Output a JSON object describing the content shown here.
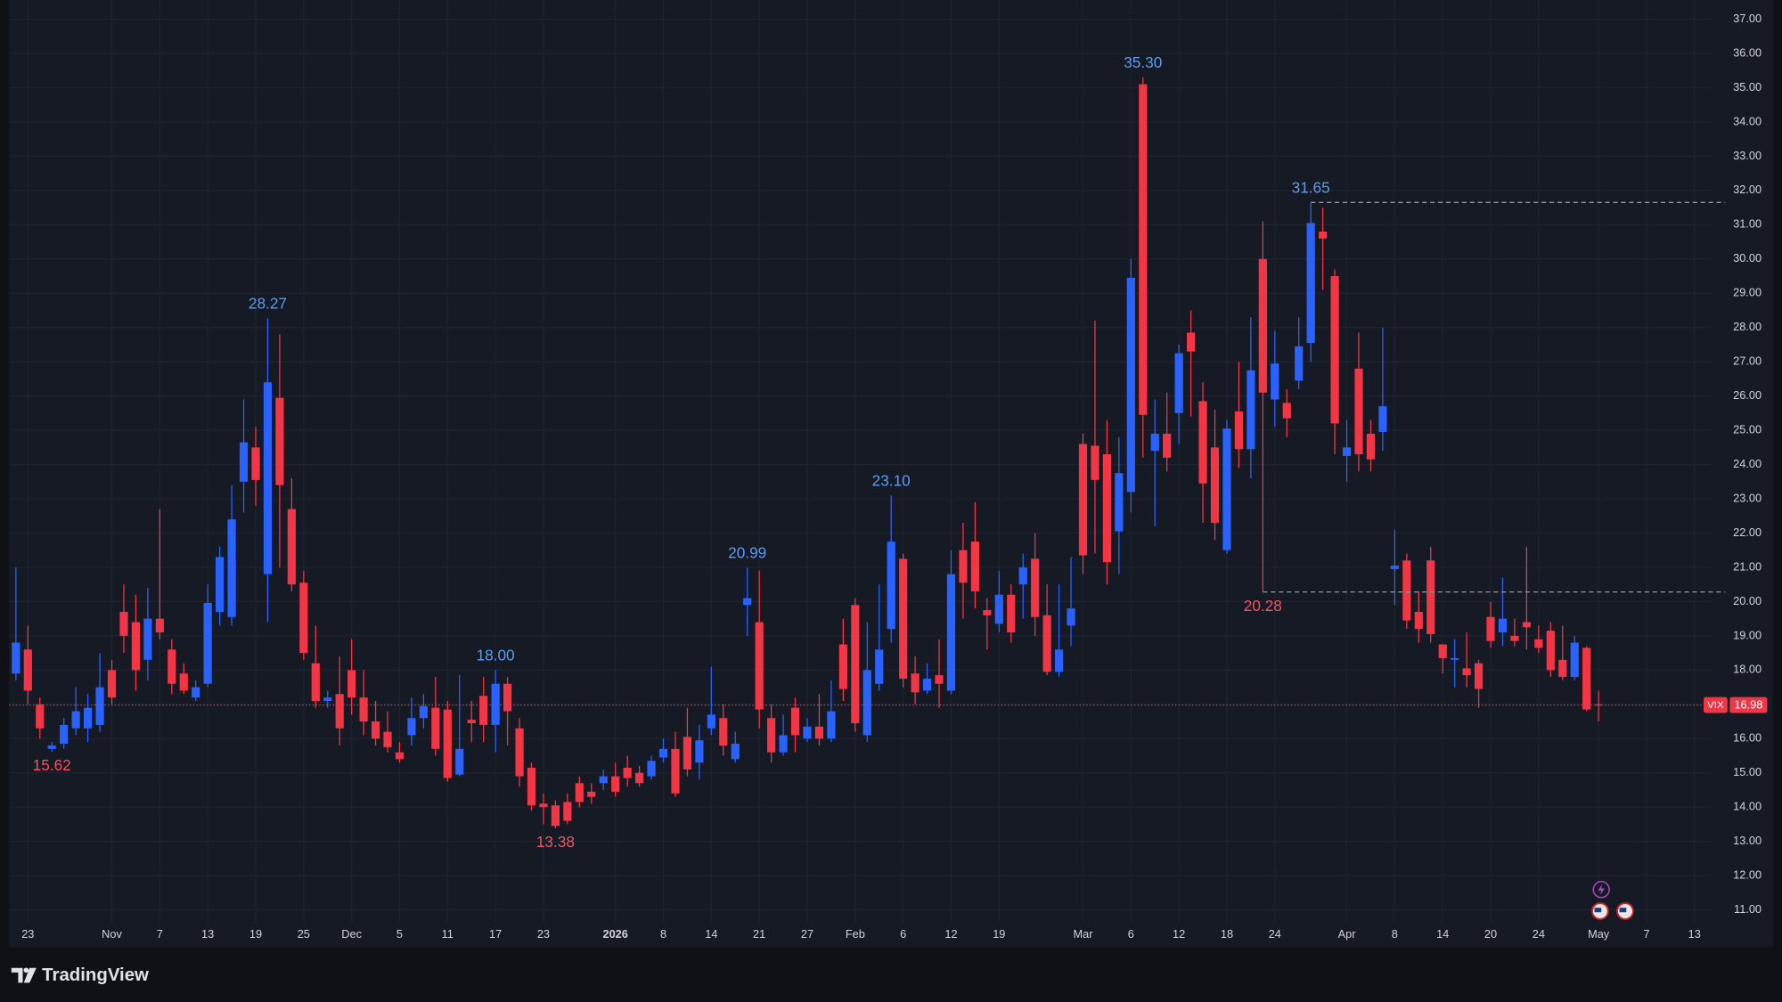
{
  "brand": "TradingView",
  "chart_data": {
    "type": "candlestick",
    "categories": [
      null,
      "23",
      null,
      null,
      null,
      null,
      null,
      null,
      "Nov",
      null,
      null,
      null,
      "7",
      null,
      null,
      null,
      "13",
      null,
      null,
      null,
      "19",
      null,
      null,
      null,
      "25",
      null,
      null,
      null,
      "Dec",
      null,
      null,
      null,
      "5",
      null,
      null,
      null,
      "11",
      null,
      null,
      null,
      "17",
      null,
      null,
      null,
      "23",
      null,
      null,
      null,
      null,
      null,
      "2026",
      null,
      null,
      null,
      "8",
      null,
      null,
      null,
      "14",
      null,
      null,
      null,
      "21",
      null,
      null,
      null,
      "27",
      null,
      null,
      null,
      "Feb",
      null,
      null,
      null,
      "6",
      null,
      null,
      null,
      "12",
      null,
      null,
      null,
      "19",
      null,
      null,
      null,
      null,
      null,
      null,
      "Mar",
      null,
      null,
      null,
      "6",
      null,
      null,
      null,
      "12",
      null,
      null,
      null,
      "18",
      null,
      null,
      null,
      "24",
      null,
      null,
      null,
      null,
      null,
      "Apr",
      null,
      null,
      null,
      "8",
      null,
      null,
      null,
      "14",
      null,
      null,
      null,
      "20",
      null,
      null,
      null,
      "24",
      null,
      null,
      null,
      null,
      "May",
      null,
      null,
      null,
      "7",
      null,
      null,
      null,
      "13"
    ],
    "open": [
      17.9,
      18.6,
      17.0,
      15.7,
      15.85,
      16.3,
      16.3,
      16.4,
      18.0,
      19.7,
      19.4,
      18.3,
      19.5,
      18.6,
      17.9,
      17.2,
      17.6,
      19.7,
      19.55,
      23.5,
      24.5,
      20.8,
      25.95,
      22.7,
      20.55,
      18.2,
      17.1,
      17.3,
      18.0,
      17.2,
      16.5,
      16.2,
      15.6,
      16.1,
      16.6,
      16.9,
      16.85,
      14.95,
      16.55,
      17.25,
      16.4,
      17.6,
      16.3,
      15.15,
      14.1,
      14.05,
      14.15,
      14.7,
      14.45,
      14.7,
      14.9,
      15.15,
      15.0,
      14.9,
      15.45,
      15.7,
      16.05,
      15.3,
      16.3,
      16.6,
      15.4,
      19.9,
      19.4,
      16.6,
      15.6,
      16.9,
      16.0,
      16.35,
      16.0,
      18.75,
      19.9,
      16.1,
      17.6,
      19.2,
      21.25,
      17.9,
      17.4,
      17.85,
      17.4,
      21.5,
      21.75,
      19.75,
      19.35,
      20.2,
      20.5,
      21.25,
      19.6,
      17.95,
      19.3,
      24.6,
      24.55,
      24.3,
      22.05,
      23.2,
      35.1,
      24.4,
      24.9,
      25.5,
      27.85,
      25.85,
      24.5,
      21.5,
      25.55,
      24.45,
      30.0,
      25.9,
      25.8,
      26.45,
      27.55,
      30.8,
      29.5,
      24.25,
      26.8,
      24.9,
      24.95,
      20.95,
      21.2,
      19.7,
      21.2,
      18.75,
      18.3,
      18.05,
      18.2,
      19.55,
      19.1,
      19.0,
      19.4,
      18.9,
      19.15,
      18.3,
      17.8,
      18.65,
      17.0,
      null,
      null,
      null,
      null,
      null,
      null,
      null,
      null
    ],
    "high": [
      21.0,
      19.3,
      17.2,
      15.9,
      16.6,
      17.5,
      17.3,
      18.5,
      18.3,
      20.5,
      20.2,
      20.4,
      22.7,
      18.9,
      18.2,
      17.7,
      20.5,
      21.6,
      23.4,
      25.9,
      25.1,
      28.27,
      27.8,
      23.6,
      20.9,
      19.3,
      17.4,
      18.4,
      18.9,
      18.0,
      17.1,
      16.8,
      15.9,
      17.2,
      17.3,
      17.8,
      17.1,
      17.85,
      17.1,
      17.8,
      18.0,
      17.8,
      16.6,
      15.3,
      14.4,
      14.2,
      14.4,
      14.9,
      14.7,
      15.1,
      15.3,
      15.5,
      15.2,
      15.5,
      16.0,
      16.2,
      16.9,
      16.4,
      18.1,
      17.0,
      16.2,
      20.99,
      20.9,
      17.0,
      16.7,
      17.2,
      16.6,
      17.3,
      17.7,
      19.5,
      20.1,
      19.4,
      20.5,
      23.1,
      21.4,
      18.4,
      18.2,
      18.9,
      21.5,
      22.3,
      22.9,
      20.1,
      20.9,
      20.5,
      21.4,
      22.0,
      20.5,
      20.5,
      21.3,
      24.9,
      28.2,
      25.3,
      24.8,
      30.0,
      35.3,
      25.9,
      26.1,
      27.5,
      28.5,
      26.4,
      25.6,
      25.3,
      27.0,
      28.3,
      31.1,
      27.9,
      26.2,
      28.3,
      31.65,
      31.5,
      29.7,
      25.3,
      27.85,
      25.3,
      28.0,
      22.1,
      21.4,
      20.3,
      21.6,
      18.75,
      18.9,
      19.1,
      18.3,
      20.0,
      20.7,
      19.5,
      21.6,
      19.3,
      19.4,
      19.3,
      19.0,
      18.7,
      17.4,
      null,
      null,
      null,
      null,
      null,
      null,
      null,
      null
    ],
    "low": [
      17.7,
      17.0,
      16.0,
      15.62,
      15.7,
      16.1,
      15.9,
      16.2,
      17.0,
      18.5,
      17.4,
      17.7,
      18.9,
      17.3,
      17.3,
      17.1,
      17.5,
      19.3,
      19.3,
      22.6,
      22.8,
      19.4,
      21.0,
      20.3,
      18.3,
      16.9,
      16.9,
      15.8,
      16.7,
      16.1,
      15.8,
      15.6,
      15.3,
      15.8,
      16.3,
      15.5,
      14.75,
      14.9,
      15.9,
      15.9,
      15.6,
      15.8,
      14.6,
      13.9,
      13.5,
      13.38,
      13.5,
      14.0,
      14.1,
      14.5,
      14.3,
      14.6,
      14.6,
      14.8,
      15.3,
      14.3,
      14.9,
      14.8,
      16.1,
      15.5,
      15.3,
      19.0,
      16.3,
      15.3,
      15.5,
      15.6,
      15.9,
      15.8,
      15.9,
      17.1,
      16.2,
      15.9,
      17.4,
      18.8,
      17.5,
      17.0,
      17.3,
      16.9,
      17.3,
      19.5,
      19.8,
      18.6,
      19.1,
      18.8,
      19.5,
      19.0,
      17.85,
      17.8,
      18.7,
      20.8,
      21.4,
      20.5,
      20.8,
      22.6,
      24.2,
      22.2,
      23.8,
      24.6,
      25.4,
      22.3,
      21.8,
      21.4,
      23.9,
      23.6,
      20.28,
      25.1,
      24.8,
      26.2,
      27.0,
      29.1,
      24.3,
      23.5,
      23.8,
      23.8,
      24.4,
      19.9,
      19.2,
      18.8,
      18.8,
      17.9,
      17.5,
      17.5,
      16.9,
      18.65,
      18.7,
      18.7,
      18.6,
      18.5,
      17.8,
      17.7,
      17.7,
      16.8,
      16.5,
      null,
      null,
      null,
      null,
      null,
      null,
      null,
      null
    ],
    "close": [
      18.8,
      17.4,
      16.3,
      15.8,
      16.4,
      16.8,
      16.9,
      17.5,
      17.2,
      19.0,
      18.0,
      19.5,
      19.1,
      17.6,
      17.4,
      17.5,
      19.96,
      21.3,
      22.4,
      24.65,
      23.55,
      26.4,
      23.4,
      20.5,
      18.5,
      17.1,
      17.2,
      16.3,
      17.2,
      16.5,
      16.0,
      15.75,
      15.4,
      16.6,
      16.95,
      15.7,
      14.85,
      15.7,
      16.45,
      16.4,
      17.6,
      16.8,
      14.9,
      14.05,
      14.0,
      13.45,
      13.6,
      14.15,
      14.3,
      14.9,
      14.45,
      14.85,
      14.7,
      15.35,
      15.7,
      14.4,
      15.1,
      15.95,
      16.7,
      15.8,
      15.85,
      20.1,
      16.85,
      15.6,
      16.1,
      16.1,
      16.35,
      16.0,
      16.8,
      17.45,
      16.45,
      18.0,
      18.6,
      21.75,
      17.75,
      17.35,
      17.75,
      17.6,
      20.8,
      20.55,
      20.3,
      19.6,
      20.2,
      19.1,
      21.0,
      19.55,
      17.95,
      18.6,
      19.8,
      21.35,
      23.55,
      21.15,
      23.75,
      29.45,
      25.45,
      24.9,
      24.2,
      27.25,
      27.3,
      23.45,
      22.3,
      25.05,
      24.45,
      26.75,
      26.1,
      26.95,
      25.35,
      27.45,
      31.05,
      30.6,
      25.2,
      24.5,
      24.3,
      24.15,
      25.7,
      21.05,
      19.45,
      19.2,
      19.05,
      18.35,
      18.35,
      17.85,
      17.45,
      18.85,
      19.5,
      18.85,
      19.25,
      18.65,
      18.0,
      17.8,
      18.8,
      16.85,
      16.98,
      null,
      null,
      null,
      null,
      null,
      null,
      null,
      null
    ],
    "high_labels": [
      null,
      null,
      null,
      null,
      null,
      null,
      null,
      null,
      null,
      null,
      null,
      null,
      null,
      null,
      null,
      null,
      null,
      null,
      null,
      null,
      null,
      "28.27",
      null,
      null,
      null,
      null,
      null,
      null,
      null,
      null,
      null,
      null,
      null,
      null,
      null,
      null,
      null,
      null,
      null,
      null,
      "18.00",
      null,
      null,
      null,
      null,
      null,
      null,
      null,
      null,
      null,
      null,
      null,
      null,
      null,
      null,
      null,
      null,
      null,
      null,
      null,
      null,
      "20.99",
      null,
      null,
      null,
      null,
      null,
      null,
      null,
      null,
      null,
      null,
      null,
      "23.10",
      null,
      null,
      null,
      null,
      null,
      null,
      null,
      null,
      null,
      null,
      null,
      null,
      null,
      null,
      null,
      null,
      null,
      null,
      null,
      null,
      "35.30",
      null,
      null,
      null,
      null,
      null,
      null,
      null,
      null,
      null,
      null,
      null,
      null,
      null,
      "31.65",
      null,
      null,
      null,
      null,
      null,
      null,
      null,
      null,
      null,
      null,
      null,
      null,
      null,
      null,
      null,
      null,
      null,
      null,
      null,
      null,
      null,
      null,
      null,
      null,
      null,
      null,
      null,
      null,
      null,
      null,
      null,
      null
    ],
    "low_labels": [
      null,
      null,
      null,
      "15.62",
      null,
      null,
      null,
      null,
      null,
      null,
      null,
      null,
      null,
      null,
      null,
      null,
      null,
      null,
      null,
      null,
      null,
      null,
      null,
      null,
      null,
      null,
      null,
      null,
      null,
      null,
      null,
      null,
      null,
      null,
      null,
      null,
      null,
      null,
      null,
      null,
      null,
      null,
      null,
      null,
      null,
      "13.38",
      null,
      null,
      null,
      null,
      null,
      null,
      null,
      null,
      null,
      null,
      null,
      null,
      null,
      null,
      null,
      null,
      null,
      null,
      null,
      null,
      null,
      null,
      null,
      null,
      null,
      null,
      null,
      null,
      null,
      null,
      null,
      null,
      null,
      null,
      null,
      null,
      null,
      null,
      null,
      null,
      null,
      null,
      null,
      null,
      null,
      null,
      null,
      null,
      null,
      null,
      null,
      null,
      null,
      null,
      null,
      null,
      null,
      null,
      "20.28",
      null,
      null,
      null,
      null,
      null,
      null,
      null,
      null,
      null,
      null,
      null,
      null,
      null,
      null,
      null,
      null,
      null,
      null,
      null,
      null,
      null,
      null,
      null,
      null,
      null,
      null,
      null,
      null,
      null,
      null,
      null,
      null,
      null,
      null,
      null,
      null
    ],
    "up_color": "#2962ff",
    "down_color": "#f23645",
    "levels": [
      31.65,
      20.28
    ],
    "last_price": {
      "symbol": "VIX",
      "value": 16.98
    },
    "ylim": [
      9.97,
      37.56
    ],
    "yticks": [
      {
        "value": 11,
        "label": "11.00"
      },
      {
        "value": 12,
        "label": "12.00"
      },
      {
        "value": 13,
        "label": "13.00"
      },
      {
        "value": 14,
        "label": "14.00"
      },
      {
        "value": 15,
        "label": "15.00"
      },
      {
        "value": 16,
        "label": "16.00"
      },
      {
        "value": 17,
        "label": "17.00"
      },
      {
        "value": 18,
        "label": "18.00"
      },
      {
        "value": 19,
        "label": "19.00"
      },
      {
        "value": 20,
        "label": "20.00"
      },
      {
        "value": 21,
        "label": "21.00"
      },
      {
        "value": 22,
        "label": "22.00"
      },
      {
        "value": 23,
        "label": "23.00"
      },
      {
        "value": 24,
        "label": "24.00"
      },
      {
        "value": 25,
        "label": "25.00"
      },
      {
        "value": 26,
        "label": "26.00"
      },
      {
        "value": 27,
        "label": "27.00"
      },
      {
        "value": 28,
        "label": "28.00"
      },
      {
        "value": 29,
        "label": "29.00"
      },
      {
        "value": 30,
        "label": "30.00"
      },
      {
        "value": 31,
        "label": "31.00"
      },
      {
        "value": 32,
        "label": "32.00"
      },
      {
        "value": 33,
        "label": "33.00"
      },
      {
        "value": 34,
        "label": "34.00"
      },
      {
        "value": 35,
        "label": "35.00"
      },
      {
        "value": 36,
        "label": "36.00"
      },
      {
        "value": 37,
        "label": "37.00"
      }
    ],
    "grid": true
  }
}
